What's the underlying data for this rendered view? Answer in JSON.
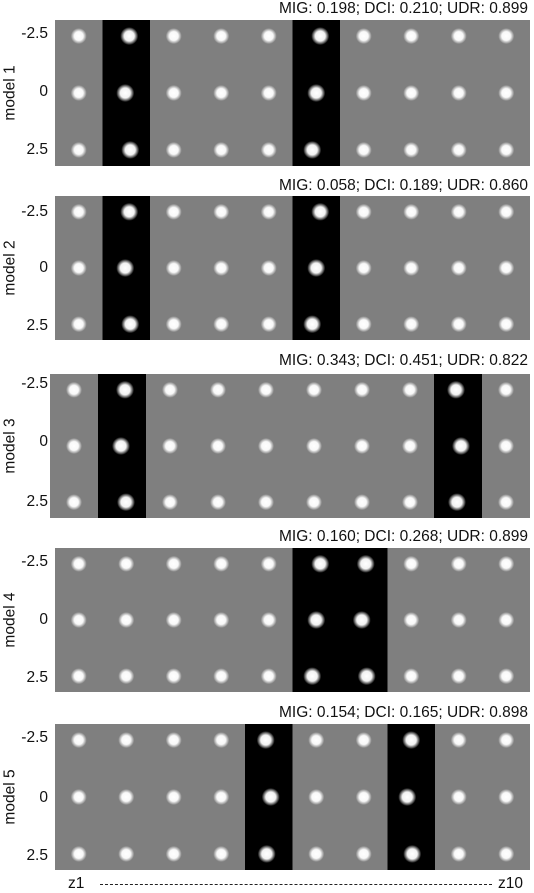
{
  "panels": [
    {
      "label": "model 1",
      "metrics": "MIG: 0.198; DCI: 0.210; UDR: 0.899",
      "ticks": [
        "-2.5",
        "0",
        "2.5"
      ],
      "black_columns": [
        2,
        6
      ]
    },
    {
      "label": "model 2",
      "metrics": "MIG: 0.058; DCI: 0.189; UDR: 0.860",
      "ticks": [
        "-2.5",
        "0",
        "2.5"
      ],
      "black_columns": [
        2,
        6
      ]
    },
    {
      "label": "model 3",
      "metrics": "MIG: 0.343; DCI: 0.451; UDR: 0.822",
      "ticks": [
        "-2.5",
        "0",
        "2.5"
      ],
      "black_columns": [
        2,
        9
      ]
    },
    {
      "label": "model 4",
      "metrics": "MIG: 0.160; DCI: 0.268; UDR: 0.899",
      "ticks": [
        "-2.5",
        "0",
        "2.5"
      ],
      "black_columns": [
        6,
        7
      ]
    },
    {
      "label": "model 5",
      "metrics": "MIG: 0.154; DCI: 0.165; UDR: 0.898",
      "ticks": [
        "-2.5",
        "0",
        "2.5"
      ],
      "black_columns": [
        5,
        8
      ]
    }
  ],
  "x_axis": {
    "start_label": "z1",
    "end_label": "z10"
  },
  "colors": {
    "background": "#7f7f7f",
    "highlight_column": "#000000",
    "blob": "#ffffff"
  }
}
